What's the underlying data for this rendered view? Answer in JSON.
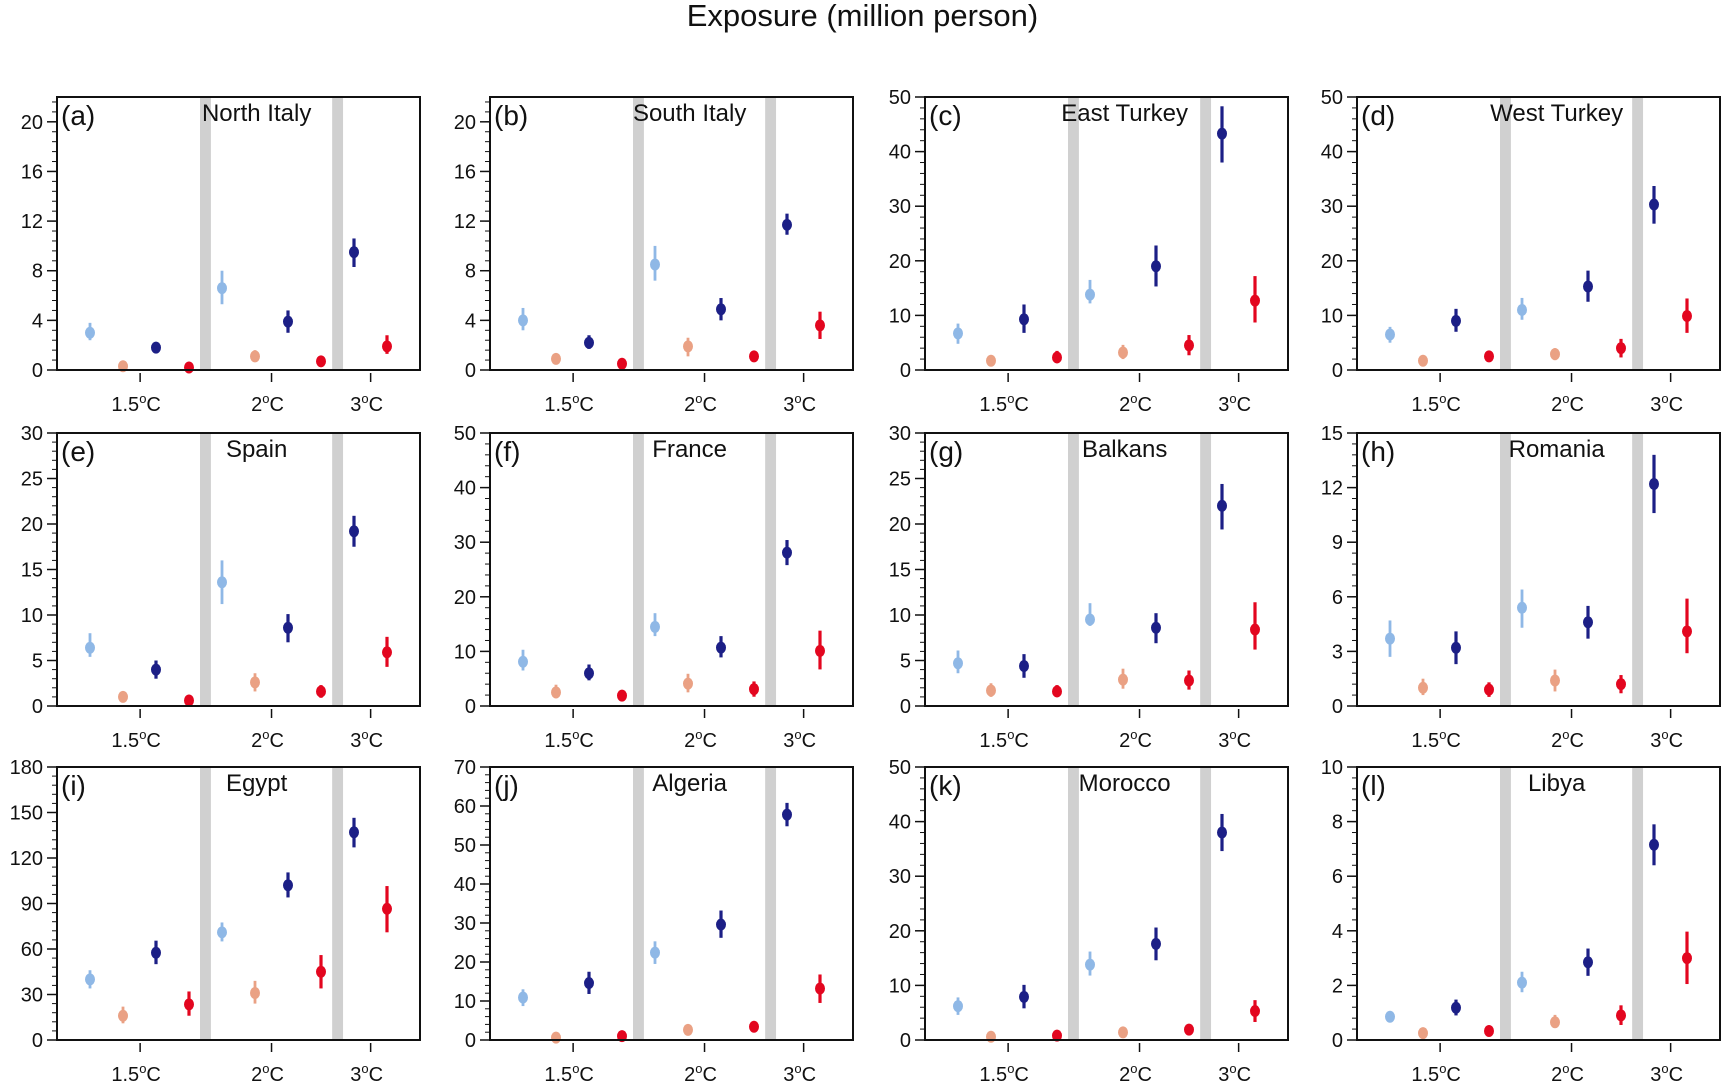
{
  "figure": {
    "title": "Exposure (million person)"
  },
  "chart_data": {
    "type": "scatter",
    "title": "Exposure (million person)",
    "description": "Point estimates with uncertainty bars for each region at 1.5°C, 2°C and 3°C warming levels",
    "series_colors": {
      "light_blue": "#8fb8e6",
      "orange": "#eaa184",
      "navy": "#1c1f86",
      "red": "#e3061f"
    },
    "band_color": "#d0d0d0",
    "categories": [
      "1.5°C",
      "2°C",
      "3°C"
    ],
    "x_tick_labels": [
      "1.5",
      "2",
      "3"
    ],
    "x_tick_unit": "°C",
    "point_order": [
      {
        "group": "1.5°C",
        "series": "light_blue"
      },
      {
        "group": "1.5°C",
        "series": "orange"
      },
      {
        "group": "1.5°C",
        "series": "navy"
      },
      {
        "group": "1.5°C",
        "series": "red"
      },
      {
        "group": "2°C",
        "series": "light_blue"
      },
      {
        "group": "2°C",
        "series": "orange"
      },
      {
        "group": "2°C",
        "series": "navy"
      },
      {
        "group": "2°C",
        "series": "red"
      },
      {
        "group": "3°C",
        "series": "navy"
      },
      {
        "group": "3°C",
        "series": "red"
      }
    ],
    "panels": [
      {
        "letter": "(a)",
        "name": "North Italy",
        "ylim": [
          0,
          22
        ],
        "yticks": [
          0,
          4,
          8,
          12,
          16,
          20
        ],
        "points": [
          [
            3.0,
            2.4,
            3.8
          ],
          [
            0.3,
            0.1,
            0.6
          ],
          [
            1.8,
            1.4,
            2.2
          ],
          [
            0.2,
            0.0,
            0.4
          ],
          [
            6.6,
            5.3,
            8.0
          ],
          [
            1.1,
            0.7,
            1.6
          ],
          [
            3.9,
            3.0,
            4.8
          ],
          [
            0.7,
            0.4,
            1.0
          ],
          [
            9.5,
            8.3,
            10.6
          ],
          [
            1.9,
            1.3,
            2.8
          ]
        ]
      },
      {
        "letter": "(b)",
        "name": "South Italy",
        "ylim": [
          0,
          22
        ],
        "yticks": [
          0,
          4,
          8,
          12,
          16,
          20
        ],
        "points": [
          [
            4.0,
            3.2,
            5.0
          ],
          [
            0.9,
            0.6,
            1.3
          ],
          [
            2.2,
            1.7,
            2.8
          ],
          [
            0.5,
            0.3,
            0.7
          ],
          [
            8.5,
            7.2,
            10.0
          ],
          [
            1.9,
            1.1,
            2.6
          ],
          [
            4.9,
            4.0,
            5.8
          ],
          [
            1.1,
            0.7,
            1.5
          ],
          [
            11.7,
            10.9,
            12.6
          ],
          [
            3.6,
            2.5,
            4.7
          ]
        ]
      },
      {
        "letter": "(c)",
        "name": "East Turkey",
        "ylim": [
          0,
          50
        ],
        "yticks": [
          0,
          10,
          20,
          30,
          40,
          50
        ],
        "points": [
          [
            6.7,
            4.8,
            8.5
          ],
          [
            1.7,
            1.0,
            2.4
          ],
          [
            9.3,
            6.8,
            12.0
          ],
          [
            2.3,
            1.4,
            3.5
          ],
          [
            13.8,
            12.2,
            16.5
          ],
          [
            3.2,
            2.0,
            4.6
          ],
          [
            19.0,
            15.3,
            22.8
          ],
          [
            4.5,
            2.7,
            6.4
          ],
          [
            43.3,
            38.0,
            48.3
          ],
          [
            12.7,
            8.7,
            17.2
          ]
        ]
      },
      {
        "letter": "(d)",
        "name": "West Turkey",
        "ylim": [
          0,
          50
        ],
        "yticks": [
          0,
          10,
          20,
          30,
          40,
          50
        ],
        "points": [
          [
            6.5,
            5.0,
            7.9
          ],
          [
            1.7,
            1.0,
            2.4
          ],
          [
            9.0,
            7.0,
            11.2
          ],
          [
            2.5,
            1.5,
            3.5
          ],
          [
            11.0,
            9.2,
            13.2
          ],
          [
            2.9,
            1.8,
            4.0
          ],
          [
            15.3,
            12.5,
            18.2
          ],
          [
            4.0,
            2.3,
            5.7
          ],
          [
            30.3,
            26.8,
            33.7
          ],
          [
            9.9,
            6.8,
            13.1
          ]
        ]
      },
      {
        "letter": "(e)",
        "name": "Spain",
        "ylim": [
          0,
          30
        ],
        "yticks": [
          0,
          5,
          10,
          15,
          20,
          25,
          30
        ],
        "points": [
          [
            6.4,
            5.4,
            8.0
          ],
          [
            1.0,
            0.5,
            1.5
          ],
          [
            4.0,
            3.0,
            5.0
          ],
          [
            0.6,
            0.3,
            0.9
          ],
          [
            13.6,
            11.2,
            16.0
          ],
          [
            2.6,
            1.6,
            3.6
          ],
          [
            8.6,
            7.0,
            10.1
          ],
          [
            1.6,
            0.9,
            2.3
          ],
          [
            19.2,
            17.5,
            20.9
          ],
          [
            5.9,
            4.3,
            7.6
          ]
        ]
      },
      {
        "letter": "(f)",
        "name": "France",
        "ylim": [
          0,
          50
        ],
        "yticks": [
          0,
          10,
          20,
          30,
          40,
          50
        ],
        "points": [
          [
            8.1,
            6.5,
            10.3
          ],
          [
            2.5,
            1.4,
            3.9
          ],
          [
            6.0,
            4.7,
            7.6
          ],
          [
            1.9,
            1.2,
            2.7
          ],
          [
            14.5,
            12.8,
            17.0
          ],
          [
            4.1,
            2.5,
            5.9
          ],
          [
            10.7,
            8.9,
            12.8
          ],
          [
            3.1,
            1.7,
            4.5
          ],
          [
            28.1,
            25.8,
            30.4
          ],
          [
            10.1,
            6.7,
            13.8
          ]
        ]
      },
      {
        "letter": "(g)",
        "name": "Balkans",
        "ylim": [
          0,
          30
        ],
        "yticks": [
          0,
          5,
          10,
          15,
          20,
          25,
          30
        ],
        "points": [
          [
            4.7,
            3.6,
            6.1
          ],
          [
            1.7,
            1.0,
            2.5
          ],
          [
            4.4,
            3.1,
            5.7
          ],
          [
            1.6,
            1.0,
            2.3
          ],
          [
            9.5,
            8.8,
            11.3
          ],
          [
            2.9,
            1.9,
            4.1
          ],
          [
            8.6,
            6.9,
            10.2
          ],
          [
            2.8,
            1.8,
            3.9
          ],
          [
            22.0,
            19.4,
            24.4
          ],
          [
            8.4,
            6.2,
            11.4
          ]
        ]
      },
      {
        "letter": "(h)",
        "name": "Romania",
        "ylim": [
          0,
          15
        ],
        "yticks": [
          0,
          3,
          6,
          9,
          12,
          15
        ],
        "points": [
          [
            3.7,
            2.7,
            4.7
          ],
          [
            1.0,
            0.6,
            1.5
          ],
          [
            3.2,
            2.3,
            4.1
          ],
          [
            0.9,
            0.5,
            1.3
          ],
          [
            5.4,
            4.3,
            6.4
          ],
          [
            1.4,
            0.8,
            2.0
          ],
          [
            4.6,
            3.7,
            5.5
          ],
          [
            1.2,
            0.7,
            1.7
          ],
          [
            12.2,
            10.6,
            13.8
          ],
          [
            4.1,
            2.9,
            5.9
          ]
        ]
      },
      {
        "letter": "(i)",
        "name": "Egypt",
        "ylim": [
          0,
          180
        ],
        "yticks": [
          0,
          30,
          60,
          90,
          120,
          150,
          180
        ],
        "points": [
          [
            40.0,
            34.0,
            46.0
          ],
          [
            16.0,
            11.0,
            22.0
          ],
          [
            57.5,
            50.0,
            65.5
          ],
          [
            23.5,
            16.0,
            32.0
          ],
          [
            71.0,
            65.0,
            77.5
          ],
          [
            31.0,
            24.0,
            39.0
          ],
          [
            102.0,
            94.0,
            110.5
          ],
          [
            45.0,
            34.0,
            56.0
          ],
          [
            137.0,
            127.0,
            146.5
          ],
          [
            86.5,
            71.0,
            101.5
          ]
        ]
      },
      {
        "letter": "(j)",
        "name": "Algeria",
        "ylim": [
          0,
          70
        ],
        "yticks": [
          0,
          10,
          20,
          30,
          40,
          50,
          60,
          70
        ],
        "points": [
          [
            10.9,
            8.7,
            13.0
          ],
          [
            0.6,
            0.3,
            1.0
          ],
          [
            14.6,
            11.8,
            17.5
          ],
          [
            1.0,
            0.5,
            1.4
          ],
          [
            22.4,
            19.5,
            25.3
          ],
          [
            2.6,
            1.8,
            3.4
          ],
          [
            29.6,
            26.2,
            33.2
          ],
          [
            3.4,
            2.2,
            4.6
          ],
          [
            57.8,
            54.8,
            60.8
          ],
          [
            13.2,
            9.5,
            16.8
          ]
        ]
      },
      {
        "letter": "(k)",
        "name": "Morocco",
        "ylim": [
          0,
          50
        ],
        "yticks": [
          0,
          10,
          20,
          30,
          40,
          50
        ],
        "points": [
          [
            6.2,
            4.6,
            7.8
          ],
          [
            0.6,
            0.3,
            0.9
          ],
          [
            7.9,
            5.8,
            10.1
          ],
          [
            0.8,
            0.4,
            1.2
          ],
          [
            13.8,
            11.8,
            16.2
          ],
          [
            1.4,
            0.9,
            1.9
          ],
          [
            17.6,
            14.6,
            20.6
          ],
          [
            1.9,
            1.2,
            2.6
          ],
          [
            38.0,
            34.6,
            41.4
          ],
          [
            5.3,
            3.3,
            7.3
          ]
        ]
      },
      {
        "letter": "(l)",
        "name": "Libya",
        "ylim": [
          0,
          10
        ],
        "yticks": [
          0,
          2,
          4,
          6,
          8,
          10
        ],
        "points": [
          [
            0.85,
            0.65,
            1.05
          ],
          [
            0.25,
            0.15,
            0.35
          ],
          [
            1.18,
            0.9,
            1.48
          ],
          [
            0.33,
            0.2,
            0.46
          ],
          [
            2.1,
            1.75,
            2.5
          ],
          [
            0.65,
            0.45,
            0.92
          ],
          [
            2.85,
            2.35,
            3.35
          ],
          [
            0.9,
            0.55,
            1.27
          ],
          [
            7.15,
            6.4,
            7.9
          ],
          [
            3.0,
            2.05,
            3.97
          ]
        ]
      }
    ]
  }
}
